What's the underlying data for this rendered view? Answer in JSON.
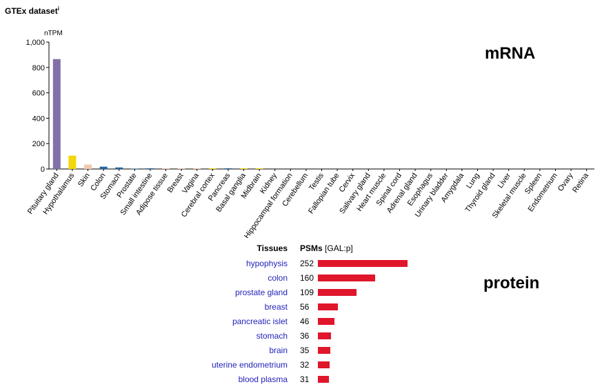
{
  "header": {
    "title": "GTEx dataset",
    "info_marker": "i"
  },
  "labels": {
    "mrna": "mRNA",
    "protein": "protein"
  },
  "chart_data": {
    "type": "bar",
    "ylabel": "nTPM",
    "ylim": [
      0,
      1000
    ],
    "yticks": [
      0,
      200,
      400,
      600,
      800,
      1000
    ],
    "ytick_labels": [
      "0",
      "200",
      "400",
      "600",
      "800",
      "1,000"
    ],
    "categories": [
      "Pituitary gland",
      "Hypothalamus",
      "Skin",
      "Colon",
      "Stomach",
      "Prostate",
      "Small intestine",
      "Adipose tissue",
      "Breast",
      "Vagina",
      "Cerebral cortex",
      "Pancreas",
      "Basal ganglia",
      "Midbrain",
      "Kidney",
      "Hippocampal formation",
      "Cerebellum",
      "Testis",
      "Fallopian tube",
      "Cervix",
      "Salivary gland",
      "Heart muscle",
      "Spinal cord",
      "Adrenal gland",
      "Esophagus",
      "Urinary bladder",
      "Amygdala",
      "Lung",
      "Thyroid gland",
      "Liver",
      "Skeletal muscle",
      "Spleen",
      "Endometrium",
      "Ovary",
      "Retina"
    ],
    "values": [
      866,
      105,
      35,
      18,
      12,
      5,
      4,
      3,
      2,
      2,
      1,
      1,
      1,
      1,
      0,
      0,
      0,
      0,
      0,
      0,
      0,
      0,
      0,
      0,
      0,
      0,
      0,
      0,
      0,
      0,
      0,
      0,
      0,
      0,
      0
    ],
    "colors": [
      "#8470a8",
      "#f2d80a",
      "#f4c8b0",
      "#2068a8",
      "#2068a8",
      "#7ab0d0",
      "#2068a8",
      "#f4c8b0",
      "#f4c8b0",
      "#f4c8b0",
      "#f2d80a",
      "#2068a8",
      "#f2d80a",
      "#f2d80a",
      "#f4c8b0",
      "#f2d80a",
      "#f2d80a",
      "#f4c8b0",
      "#f4c8b0",
      "#f4c8b0",
      "#2068a8",
      "#f4c8b0",
      "#f2d80a",
      "#8470a8",
      "#2068a8",
      "#f4c8b0",
      "#f2d80a",
      "#f4c8b0",
      "#8470a8",
      "#f4c8b0",
      "#f4c8b0",
      "#f4c8b0",
      "#f4c8b0",
      "#f4c8b0",
      "#f2d80a"
    ],
    "grid": false
  },
  "protein_table": {
    "headers": {
      "tissues": "Tissues",
      "psms": "PSMs",
      "psms_unit": "[GAL:p]"
    },
    "bar_color": "#e0162b",
    "rows": [
      {
        "tissue": "hypophysis",
        "psms": 252
      },
      {
        "tissue": "colon",
        "psms": 160
      },
      {
        "tissue": "prostate gland",
        "psms": 109
      },
      {
        "tissue": "breast",
        "psms": 56
      },
      {
        "tissue": "pancreatic islet",
        "psms": 46
      },
      {
        "tissue": "stomach",
        "psms": 36
      },
      {
        "tissue": "brain",
        "psms": 35
      },
      {
        "tissue": "uterine endometrium",
        "psms": 32
      },
      {
        "tissue": "blood plasma",
        "psms": 31
      }
    ]
  }
}
